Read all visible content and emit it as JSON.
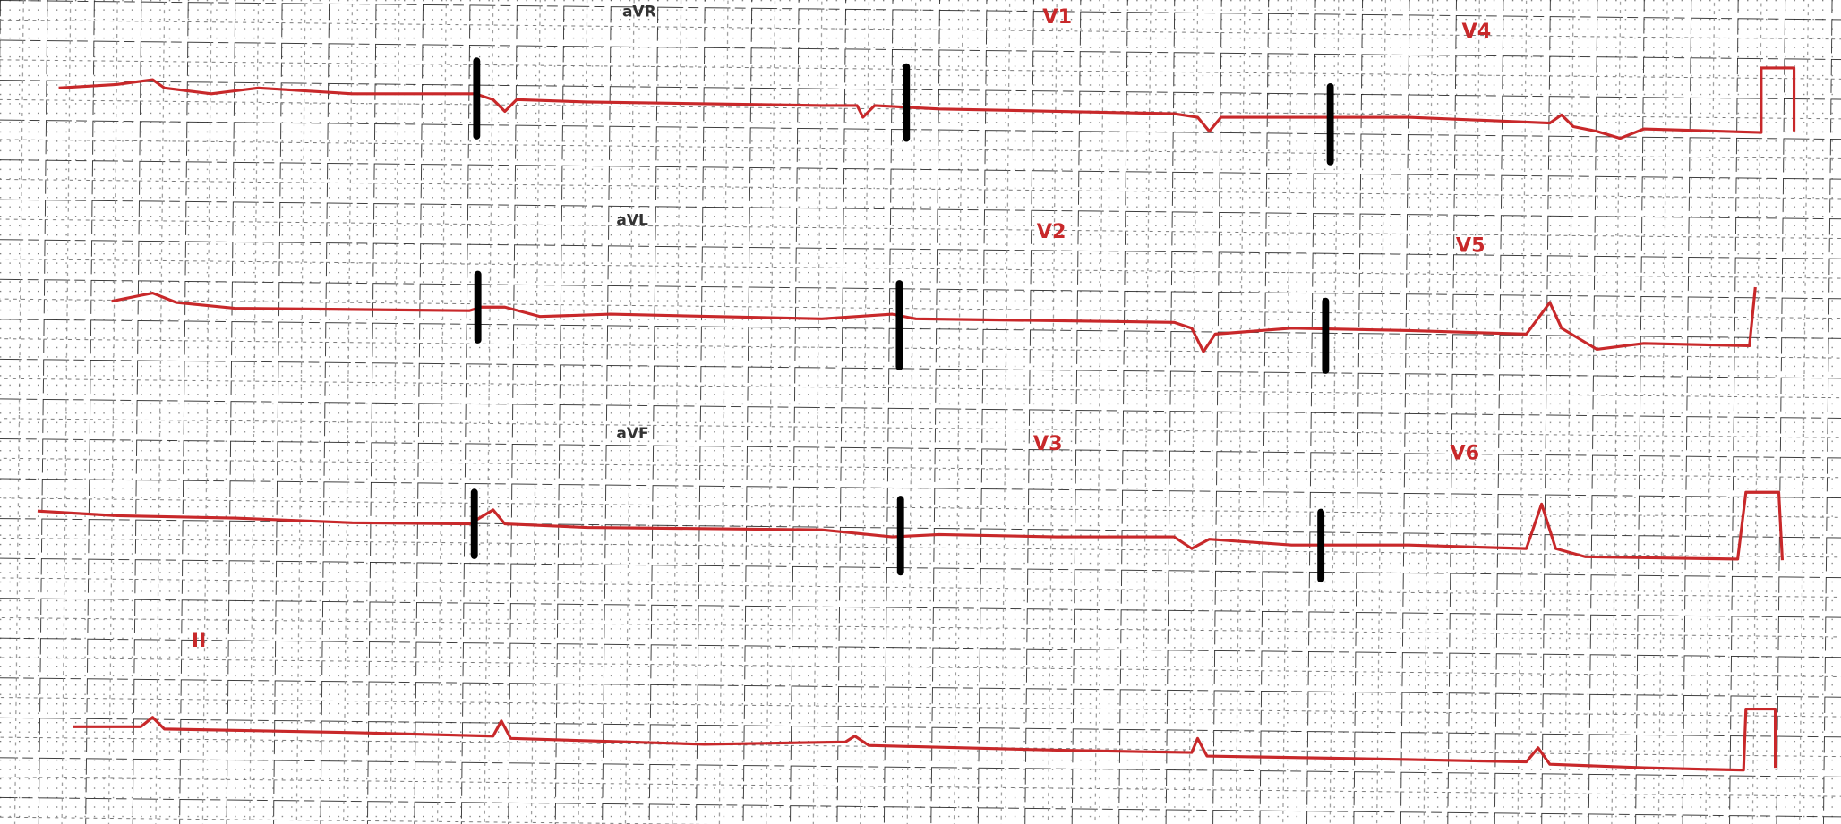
{
  "leads": [
    {
      "label": "aVR"
    },
    {
      "label": "V1"
    },
    {
      "label": "V4"
    },
    {
      "label": "aVL"
    },
    {
      "label": "V2"
    },
    {
      "label": "V5"
    },
    {
      "label": "aVF"
    },
    {
      "label": "V3"
    },
    {
      "label": "V6"
    },
    {
      "label": "II"
    }
  ]
}
